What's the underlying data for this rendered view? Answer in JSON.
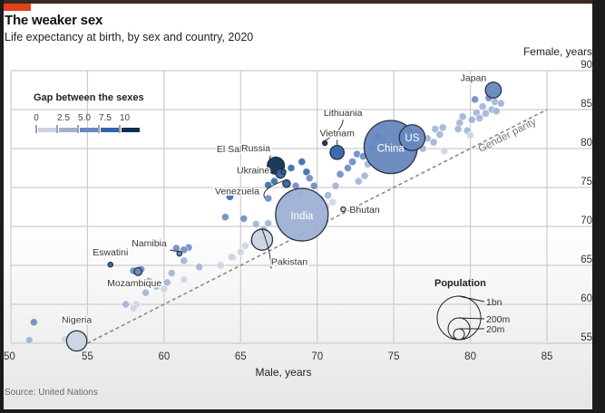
{
  "header": {
    "title": "The weaker sex",
    "subtitle": "Life expectancy at birth, by sex and country, 2020"
  },
  "footer": {
    "source": "Source: United Nations"
  },
  "colors": {
    "accent": "#e3411b",
    "gap_scale": [
      "#cbd3e2",
      "#9eb1d5",
      "#6688bf",
      "#2f65a8",
      "#0e2f55"
    ],
    "grid": "#cccccc",
    "parity_line": "#8a8a8a"
  },
  "chart_data": {
    "type": "scatter",
    "title": "The weaker sex",
    "subtitle": "Life expectancy at birth, by sex and country, 2020",
    "xlabel": "Male, years",
    "ylabel": "Female, years",
    "xlim": [
      50,
      85
    ],
    "ylim": [
      55,
      90
    ],
    "xticks": [
      50,
      55,
      60,
      65,
      70,
      75,
      80,
      85
    ],
    "yticks": [
      55,
      60,
      65,
      70,
      75,
      80,
      85,
      90
    ],
    "grid": true,
    "reference_line": {
      "label": "Gender parity",
      "from": [
        55,
        55
      ],
      "to": [
        85,
        85
      ]
    },
    "color_legend": {
      "title": "Gap between the sexes",
      "ticks": [
        "0",
        "2.5",
        "5.0",
        "7.5",
        "10"
      ],
      "placement": "top-left"
    },
    "size_legend": {
      "title": "Population",
      "entries": [
        {
          "label": "1bn",
          "value_millions": 1000
        },
        {
          "label": "200m",
          "value_millions": 200
        },
        {
          "label": "20m",
          "value_millions": 20
        }
      ],
      "placement": "bottom-right"
    },
    "labeled_points": [
      {
        "name": "Japan",
        "male": 81.5,
        "female": 87.5,
        "pop_m": 126
      },
      {
        "name": "Lithuania",
        "male": 70.5,
        "female": 80.7,
        "pop_m": 3
      },
      {
        "name": "Vietnam",
        "male": 71.3,
        "female": 79.5,
        "pop_m": 97
      },
      {
        "name": "El Salvador",
        "male": 67.8,
        "female": 77.0,
        "pop_m": 6
      },
      {
        "name": "Russia",
        "male": 67.3,
        "female": 77.8,
        "pop_m": 146
      },
      {
        "name": "US",
        "male": 76.2,
        "female": 81.4,
        "pop_m": 331
      },
      {
        "name": "China",
        "male": 74.8,
        "female": 80.2,
        "pop_m": 1410
      },
      {
        "name": "Ukraine",
        "male": 67.6,
        "female": 76.8,
        "pop_m": 44
      },
      {
        "name": "Venezuela",
        "male": 68.0,
        "female": 75.5,
        "pop_m": 28
      },
      {
        "name": "Bhutan",
        "male": 71.7,
        "female": 72.2,
        "pop_m": 0.8
      },
      {
        "name": "India",
        "male": 69.0,
        "female": 71.5,
        "pop_m": 1380
      },
      {
        "name": "Pakistan",
        "male": 66.4,
        "female": 68.3,
        "pop_m": 220
      },
      {
        "name": "Namibia",
        "male": 61.0,
        "female": 66.5,
        "pop_m": 2.5
      },
      {
        "name": "Eswatini",
        "male": 56.5,
        "female": 65.1,
        "pop_m": 1.2
      },
      {
        "name": "Mozambique",
        "male": 58.3,
        "female": 64.2,
        "pop_m": 31
      },
      {
        "name": "Nigeria",
        "male": 54.3,
        "female": 55.3,
        "pop_m": 206
      }
    ],
    "other_points": [
      [
        51.5,
        57.7,
        1.5,
        4
      ],
      [
        51.2,
        55.4,
        2,
        3
      ],
      [
        53.5,
        55.5,
        5,
        3
      ],
      [
        58.0,
        64.3,
        8,
        3
      ],
      [
        58.5,
        64.5,
        6,
        2
      ],
      [
        59.0,
        63.0,
        5,
        2
      ],
      [
        59.5,
        62.3,
        4,
        2
      ],
      [
        58.2,
        60.0,
        10,
        2
      ],
      [
        58.8,
        61.5,
        6,
        2
      ],
      [
        60.2,
        62.8,
        5,
        2
      ],
      [
        60.0,
        62.0,
        3,
        1
      ],
      [
        57.5,
        60.0,
        4,
        2
      ],
      [
        58.0,
        59.5,
        3,
        2
      ],
      [
        60.5,
        64.0,
        3,
        1
      ],
      [
        61.3,
        63.2,
        4,
        1
      ],
      [
        61.3,
        65.6,
        6,
        2
      ],
      [
        60.8,
        67.2,
        3,
        3
      ],
      [
        61.6,
        67.3,
        3,
        2
      ],
      [
        61.3,
        67.0,
        3,
        2
      ],
      [
        62.3,
        64.8,
        3,
        1
      ],
      [
        63.7,
        65.0,
        2,
        1
      ],
      [
        64.5,
        66.0,
        3,
        1
      ],
      [
        65.0,
        66.7,
        4,
        1
      ],
      [
        65.3,
        67.5,
        6,
        1
      ],
      [
        65.8,
        68.0,
        4,
        1
      ],
      [
        66.3,
        68.4,
        3,
        1
      ],
      [
        64.4,
        66.1,
        3,
        1
      ],
      [
        66.5,
        69.6,
        5,
        2
      ],
      [
        66.8,
        70.4,
        6,
        2
      ],
      [
        67.5,
        71.0,
        4,
        2
      ],
      [
        65.2,
        71.0,
        2,
        4
      ],
      [
        66.0,
        70.3,
        3,
        3
      ],
      [
        66.8,
        73.6,
        3,
        3
      ],
      [
        64.3,
        73.8,
        1,
        4
      ],
      [
        64.0,
        71.2,
        1,
        3
      ],
      [
        66.8,
        75.3,
        5,
        3
      ],
      [
        67.2,
        75.8,
        8,
        3
      ],
      [
        68.2,
        74.0,
        3,
        3
      ],
      [
        68.6,
        75.2,
        5,
        3
      ],
      [
        68.9,
        74.2,
        6,
        3
      ],
      [
        68.3,
        77.5,
        4,
        3
      ],
      [
        69.0,
        78.3,
        3,
        3
      ],
      [
        69.3,
        77.0,
        3,
        3
      ],
      [
        69.5,
        76.2,
        4,
        3
      ],
      [
        69.8,
        75.2,
        3,
        2
      ],
      [
        70.2,
        73.5,
        12,
        2
      ],
      [
        70.7,
        74.0,
        8,
        2
      ],
      [
        71.2,
        75.2,
        5,
        2
      ],
      [
        71.5,
        76.7,
        10,
        2
      ],
      [
        72.0,
        77.5,
        5,
        2
      ],
      [
        72.3,
        78.3,
        12,
        2
      ],
      [
        72.6,
        79.3,
        8,
        2
      ],
      [
        73.0,
        79.0,
        6,
        2
      ],
      [
        73.3,
        78.0,
        4,
        2
      ],
      [
        73.6,
        80.0,
        5,
        2
      ],
      [
        73.8,
        81.2,
        3,
        3
      ],
      [
        74.0,
        81.6,
        4,
        3
      ],
      [
        74.3,
        81.0,
        3,
        3
      ],
      [
        70.6,
        72.6,
        6,
        1
      ],
      [
        71.0,
        73.1,
        4,
        1
      ],
      [
        72.7,
        75.8,
        4,
        1
      ],
      [
        73.1,
        76.5,
        3,
        1
      ],
      [
        76.3,
        79.5,
        3,
        2
      ],
      [
        76.9,
        80.0,
        3,
        2
      ],
      [
        77.2,
        81.3,
        2,
        2
      ],
      [
        76.5,
        82.0,
        2,
        2
      ],
      [
        77.7,
        82.5,
        3,
        3
      ],
      [
        78.0,
        81.8,
        3,
        3
      ],
      [
        78.2,
        82.7,
        2,
        2
      ],
      [
        78.3,
        79.7,
        3,
        1
      ],
      [
        77.6,
        80.8,
        3,
        1
      ],
      [
        79.3,
        83.3,
        5,
        2
      ],
      [
        79.5,
        84.1,
        3,
        3
      ],
      [
        79.8,
        82.3,
        6,
        2
      ],
      [
        80.1,
        83.7,
        3,
        2
      ],
      [
        80.4,
        84.6,
        4,
        3
      ],
      [
        80.8,
        85.4,
        8,
        2
      ],
      [
        81.0,
        84.5,
        5,
        2
      ],
      [
        81.4,
        85.0,
        3,
        2
      ],
      [
        81.7,
        84.8,
        3,
        1
      ],
      [
        80.0,
        81.7,
        8,
        1
      ],
      [
        79.2,
        82.5,
        3,
        1
      ],
      [
        80.6,
        83.9,
        4,
        1
      ],
      [
        81.2,
        86.5,
        4,
        2
      ],
      [
        81.6,
        86.0,
        3,
        2
      ],
      [
        80.3,
        86.3,
        3,
        3
      ],
      [
        82.0,
        85.8,
        2,
        1
      ]
    ]
  }
}
